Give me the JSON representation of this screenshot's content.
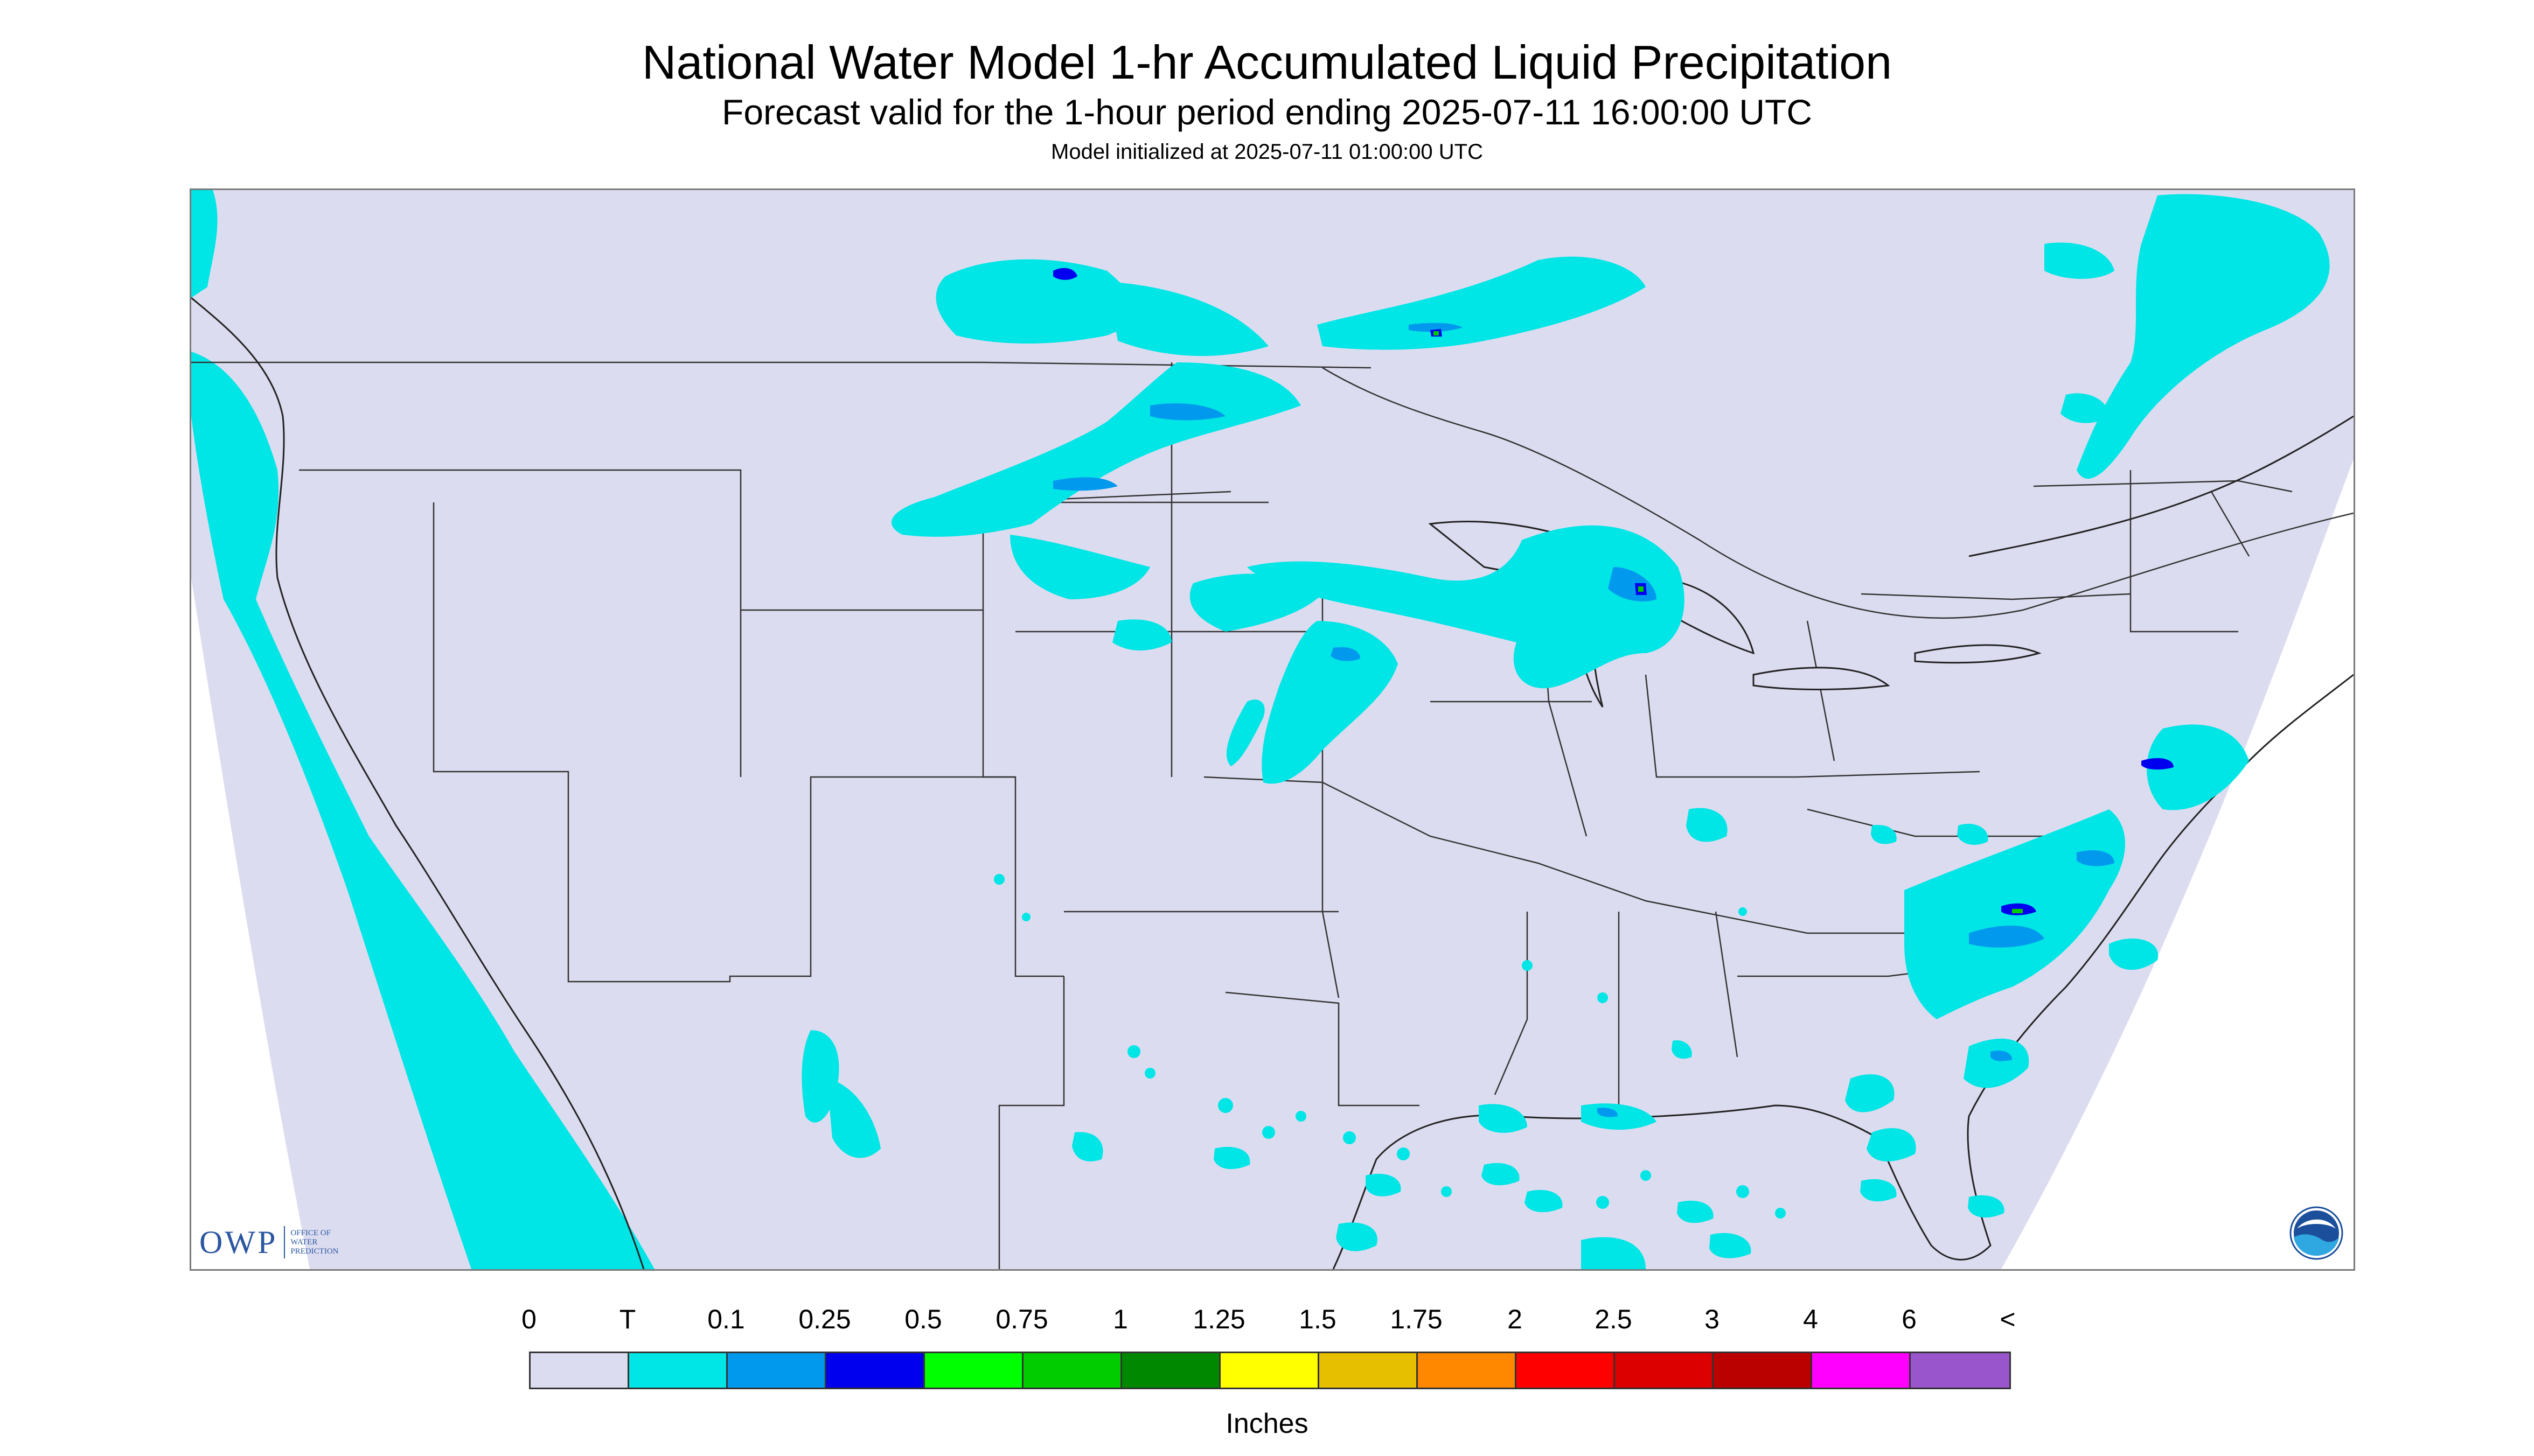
{
  "header": {
    "title": "National Water Model 1-hr Accumulated Liquid Precipitation",
    "subtitle": "Forecast valid for the 1-hour period ending 2025-07-11 16:00:00 UTC",
    "init": "Model initialized at 2025-07-11 01:00:00 UTC"
  },
  "logos": {
    "owp_abbrev": "OWP",
    "owp_line1": "OFFICE OF",
    "owp_line2": "WATER",
    "owp_line3": "PREDICTION",
    "noaa_label": "NOAA"
  },
  "legend": {
    "tick_labels": [
      "0",
      "T",
      "0.1",
      "0.25",
      "0.5",
      "0.75",
      "1",
      "1.25",
      "1.5",
      "1.75",
      "2",
      "2.5",
      "3",
      "4",
      "6",
      "<"
    ],
    "colors": [
      "#dcdcf0",
      "#00e5e5",
      "#0099ee",
      "#0000ee",
      "#00ff00",
      "#00cc00",
      "#008800",
      "#ffff00",
      "#e5bf00",
      "#ff8800",
      "#ff0000",
      "#dd0000",
      "#bb0000",
      "#ff00ff",
      "#9955cc"
    ],
    "units": "Inches"
  },
  "map": {
    "background_color": "#dcdcf0",
    "precip_colors": {
      "trace": "#00e5e5",
      "light": "#0099ee",
      "moderate": "#0000ee",
      "heavy": "#00cc00",
      "intense": "#ffff00"
    }
  }
}
